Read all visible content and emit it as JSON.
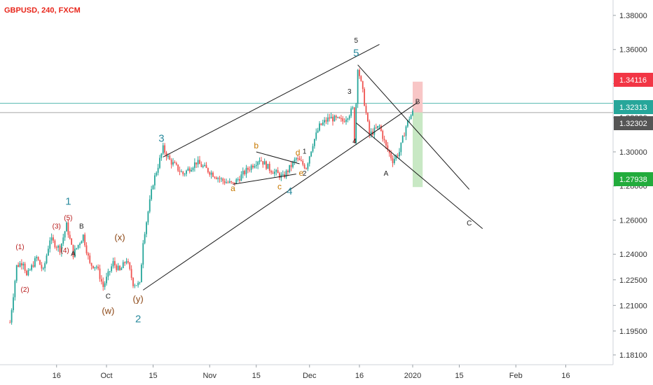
{
  "header": {
    "title": "GBPUSD, 240, FXCM"
  },
  "colors": {
    "up": "#26a69a",
    "down": "#ef5350",
    "wave_teal": "#2b8b9e",
    "wave_red": "#b71c1c",
    "wave_brown": "#8b4513",
    "wave_orange": "#c77800",
    "hline_teal": "#26a69a",
    "hline_gray": "#555555",
    "stop_zone": "#f8c6c6",
    "target_zone": "#c8e8c4"
  },
  "chart_data": {
    "type": "candlestick",
    "symbol": "GBPUSD",
    "timeframe": "240",
    "source": "FXCM",
    "ylim": [
      1.173,
      1.397
    ],
    "y_ticks": [
      "1.38000",
      "1.36000",
      "1.34000",
      "1.32000",
      "1.30000",
      "1.28000",
      "1.26000",
      "1.24000",
      "1.22500",
      "1.21000",
      "1.19500",
      "1.18100"
    ],
    "x_ticks": [
      {
        "label": "16",
        "d": -15
      },
      {
        "label": "Oct",
        "d": 0
      },
      {
        "label": "15",
        "d": 14
      },
      {
        "label": "Nov",
        "d": 31
      },
      {
        "label": "15",
        "d": 45
      },
      {
        "label": "Dec",
        "d": 61
      },
      {
        "label": "16",
        "d": 76
      },
      {
        "label": "2020",
        "d": 92
      },
      {
        "label": "15",
        "d": 106
      },
      {
        "label": "Feb",
        "d": 123
      },
      {
        "label": "16",
        "d": 138
      }
    ],
    "price_path": [
      {
        "d": -29,
        "p": 1.2
      },
      {
        "d": -27,
        "p": 1.233
      },
      {
        "d": -25,
        "p": 1.236
      },
      {
        "d": -24,
        "p": 1.227
      },
      {
        "d": -21,
        "p": 1.238
      },
      {
        "d": -19,
        "p": 1.23
      },
      {
        "d": -17,
        "p": 1.249
      },
      {
        "d": -14,
        "p": 1.243
      },
      {
        "d": -12,
        "p": 1.257
      },
      {
        "d": -10,
        "p": 1.24
      },
      {
        "d": -7,
        "p": 1.251
      },
      {
        "d": -5,
        "p": 1.234
      },
      {
        "d": -3,
        "p": 1.233
      },
      {
        "d": -1,
        "p": 1.221
      },
      {
        "d": 2,
        "p": 1.235
      },
      {
        "d": 4,
        "p": 1.23
      },
      {
        "d": 6,
        "p": 1.237
      },
      {
        "d": 8,
        "p": 1.223
      },
      {
        "d": 10,
        "p": 1.222
      },
      {
        "d": 11,
        "p": 1.248
      },
      {
        "d": 14,
        "p": 1.282
      },
      {
        "d": 17,
        "p": 1.302
      },
      {
        "d": 19,
        "p": 1.295
      },
      {
        "d": 23,
        "p": 1.287
      },
      {
        "d": 27,
        "p": 1.294
      },
      {
        "d": 32,
        "p": 1.287
      },
      {
        "d": 35,
        "p": 1.283
      },
      {
        "d": 38,
        "p": 1.281
      },
      {
        "d": 42,
        "p": 1.289
      },
      {
        "d": 46,
        "p": 1.296
      },
      {
        "d": 49,
        "p": 1.29
      },
      {
        "d": 53,
        "p": 1.285
      },
      {
        "d": 57,
        "p": 1.296
      },
      {
        "d": 60,
        "p": 1.291
      },
      {
        "d": 62,
        "p": 1.305
      },
      {
        "d": 64,
        "p": 1.315
      },
      {
        "d": 67,
        "p": 1.32
      },
      {
        "d": 71,
        "p": 1.318
      },
      {
        "d": 74,
        "p": 1.325
      },
      {
        "d": 74.5,
        "p": 1.307
      },
      {
        "d": 75.5,
        "p": 1.35
      },
      {
        "d": 77,
        "p": 1.335
      },
      {
        "d": 79,
        "p": 1.31
      },
      {
        "d": 82,
        "p": 1.315
      },
      {
        "d": 84,
        "p": 1.303
      },
      {
        "d": 86,
        "p": 1.295
      },
      {
        "d": 88,
        "p": 1.3
      },
      {
        "d": 90,
        "p": 1.315
      },
      {
        "d": 91,
        "p": 1.32
      },
      {
        "d": 92,
        "p": 1.3231
      }
    ],
    "trendlines": [
      {
        "from": {
          "d": 11,
          "p": 1.219
        },
        "to": {
          "d": 93.5,
          "p": 1.329
        }
      },
      {
        "from": {
          "d": 17,
          "p": 1.297
        },
        "to": {
          "d": 82,
          "p": 1.363
        }
      },
      {
        "from": {
          "d": 75.5,
          "p": 1.351
        },
        "to": {
          "d": 109,
          "p": 1.278
        }
      },
      {
        "from": {
          "d": 75,
          "p": 1.317
        },
        "to": {
          "d": 113,
          "p": 1.255
        }
      },
      {
        "from": {
          "d": 38,
          "p": 1.281
        },
        "to": {
          "d": 57,
          "p": 1.287
        }
      },
      {
        "from": {
          "d": 45,
          "p": 1.3
        },
        "to": {
          "d": 58,
          "p": 1.293
        }
      }
    ],
    "horizontal_lines": [
      {
        "price": 1.32313,
        "label": "1.32313"
      },
      {
        "price": 1.32302,
        "label": "1.32302"
      }
    ],
    "price_tags": [
      {
        "price": 1.34116,
        "label": "1.34116",
        "color": "#f23645"
      },
      {
        "price": 1.32313,
        "label": "1.32313",
        "color": "#26a69a"
      },
      {
        "price": 1.32302,
        "label": "1.32302",
        "color": "#555555"
      },
      {
        "price": 1.27938,
        "label": "1.27938",
        "color": "#22ab3c"
      }
    ],
    "risk_reward": {
      "d1": 92,
      "d2": 95,
      "entry": 1.3231,
      "stop": 1.34116,
      "target": 1.27938
    },
    "wave_labels": [
      {
        "text": "1",
        "d": -11.5,
        "p": 1.269,
        "color": "#2b8b9e",
        "size": 15
      },
      {
        "text": "(5)",
        "d": -11.5,
        "p": 1.26,
        "color": "#b71c1c",
        "size": 10
      },
      {
        "text": "(3)",
        "d": -15,
        "p": 1.255,
        "color": "#b71c1c",
        "size": 10
      },
      {
        "text": "B",
        "d": -7.5,
        "p": 1.255,
        "color": "#222222",
        "size": 10
      },
      {
        "text": "(4)",
        "d": -12.5,
        "p": 1.241,
        "color": "#b71c1c",
        "size": 10
      },
      {
        "text": "(1)",
        "d": -26,
        "p": 1.243,
        "color": "#b71c1c",
        "size": 10
      },
      {
        "text": "A",
        "d": -10,
        "p": 1.239,
        "color": "#222222",
        "size": 10
      },
      {
        "text": "(2)",
        "d": -24.5,
        "p": 1.218,
        "color": "#b71c1c",
        "size": 10
      },
      {
        "text": "(x)",
        "d": 4,
        "p": 1.248,
        "color": "#8b4513",
        "size": 13
      },
      {
        "text": "C",
        "d": 0.5,
        "p": 1.214,
        "color": "#222222",
        "size": 10
      },
      {
        "text": "(w)",
        "d": 0.5,
        "p": 1.205,
        "color": "#8b4513",
        "size": 13
      },
      {
        "text": "(y)",
        "d": 9.5,
        "p": 1.212,
        "color": "#8b4513",
        "size": 13
      },
      {
        "text": "2",
        "d": 9.5,
        "p": 1.2,
        "color": "#2b8b9e",
        "size": 15
      },
      {
        "text": "3",
        "d": 16.5,
        "p": 1.306,
        "color": "#2b8b9e",
        "size": 15
      },
      {
        "text": "b",
        "d": 45,
        "p": 1.302,
        "color": "#c77800",
        "size": 12
      },
      {
        "text": "a",
        "d": 38,
        "p": 1.277,
        "color": "#c77800",
        "size": 12
      },
      {
        "text": "d",
        "d": 57.5,
        "p": 1.298,
        "color": "#c77800",
        "size": 12
      },
      {
        "text": "1",
        "d": 59.5,
        "p": 1.299,
        "color": "#222222",
        "size": 10
      },
      {
        "text": "c",
        "d": 52,
        "p": 1.278,
        "color": "#c77800",
        "size": 12
      },
      {
        "text": "e",
        "d": 58.5,
        "p": 1.286,
        "color": "#c77800",
        "size": 12
      },
      {
        "text": "2",
        "d": 59.5,
        "p": 1.286,
        "color": "#222222",
        "size": 10
      },
      {
        "text": "4",
        "d": 55,
        "p": 1.275,
        "color": "#2b8b9e",
        "size": 15
      },
      {
        "text": "5",
        "d": 75,
        "p": 1.364,
        "color": "#222222",
        "size": 10
      },
      {
        "text": "5",
        "d": 75,
        "p": 1.356,
        "color": "#2b8b9e",
        "size": 15
      },
      {
        "text": "3",
        "d": 73,
        "p": 1.334,
        "color": "#222222",
        "size": 10
      },
      {
        "text": "4",
        "d": 74.5,
        "p": 1.305,
        "color": "#222222",
        "size": 10
      },
      {
        "text": "A",
        "d": 84,
        "p": 1.286,
        "color": "#222222",
        "size": 10
      },
      {
        "text": "B",
        "d": 93.5,
        "p": 1.328,
        "color": "#222222",
        "size": 10
      },
      {
        "text": "C",
        "d": 109,
        "p": 1.257,
        "color": "#222222",
        "size": 10
      }
    ]
  }
}
